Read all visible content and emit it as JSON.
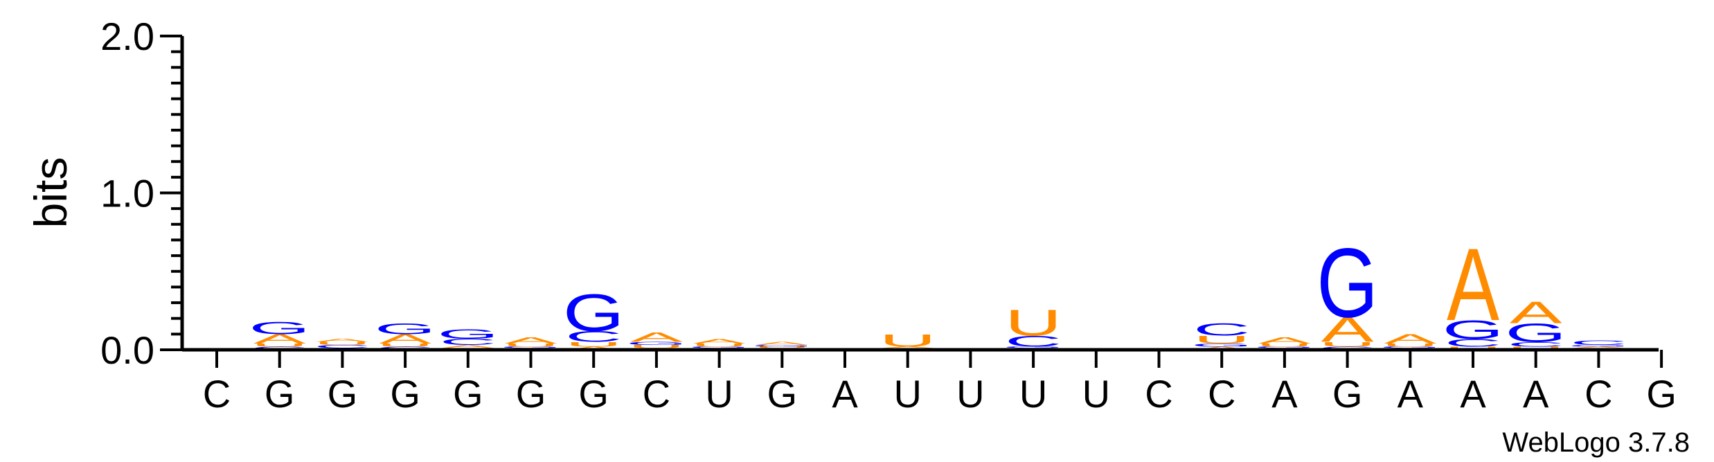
{
  "chart_data": {
    "type": "sequence-logo",
    "ylabel": "bits",
    "ylim": [
      0,
      2.0
    ],
    "yticks": [
      "0.0",
      "1.0",
      "2.0"
    ],
    "colors": {
      "A": "#ff8c00",
      "U": "#ff8c00",
      "G": "#0000ff",
      "C": "#0000ff"
    },
    "consensus": [
      "C",
      "G",
      "G",
      "G",
      "G",
      "G",
      "G",
      "C",
      "U",
      "G",
      "A",
      "U",
      "U",
      "U",
      "U",
      "C",
      "C",
      "A",
      "G",
      "A",
      "A",
      "A",
      "C",
      "G"
    ],
    "stacks": [
      [],
      [
        {
          "l": "C",
          "h": 0.02
        },
        {
          "l": "U",
          "h": 0.02
        },
        {
          "l": "A",
          "h": 0.06
        },
        {
          "l": "G",
          "h": 0.08
        }
      ],
      [
        {
          "l": "G",
          "h": 0.01
        },
        {
          "l": "C",
          "h": 0.02
        },
        {
          "l": "U",
          "h": 0.02
        },
        {
          "l": "A",
          "h": 0.02
        }
      ],
      [
        {
          "l": "C",
          "h": 0.02
        },
        {
          "l": "U",
          "h": 0.02
        },
        {
          "l": "A",
          "h": 0.06
        },
        {
          "l": "G",
          "h": 0.07
        }
      ],
      [
        {
          "l": "U",
          "h": 0.01
        },
        {
          "l": "A",
          "h": 0.02
        },
        {
          "l": "C",
          "h": 0.04
        },
        {
          "l": "G",
          "h": 0.06
        }
      ],
      [
        {
          "l": "C",
          "h": 0.01
        },
        {
          "l": "G",
          "h": 0.01
        },
        {
          "l": "U",
          "h": 0.02
        },
        {
          "l": "A",
          "h": 0.04
        }
      ],
      [
        {
          "l": "A",
          "h": 0.02
        },
        {
          "l": "U",
          "h": 0.03
        },
        {
          "l": "C",
          "h": 0.07
        },
        {
          "l": "G",
          "h": 0.24
        }
      ],
      [
        {
          "l": "C",
          "h": 0.01
        },
        {
          "l": "U",
          "h": 0.02
        },
        {
          "l": "G",
          "h": 0.02
        },
        {
          "l": "A",
          "h": 0.06
        }
      ],
      [
        {
          "l": "C",
          "h": 0.01
        },
        {
          "l": "G",
          "h": 0.01
        },
        {
          "l": "U",
          "h": 0.02
        },
        {
          "l": "A",
          "h": 0.03
        }
      ],
      [
        {
          "l": "C",
          "h": 0.01
        },
        {
          "l": "U",
          "h": 0.01
        },
        {
          "l": "G",
          "h": 0.01
        },
        {
          "l": "A",
          "h": 0.02
        }
      ],
      [],
      [
        {
          "l": "G",
          "h": 0.005
        },
        {
          "l": "C",
          "h": 0.005
        },
        {
          "l": "A",
          "h": 0.01
        },
        {
          "l": "U",
          "h": 0.08
        }
      ],
      [
        {
          "l": "G",
          "h": 0.004
        },
        {
          "l": "A",
          "h": 0.006
        }
      ],
      [
        {
          "l": "A",
          "h": 0.01
        },
        {
          "l": "G",
          "h": 0.01
        },
        {
          "l": "C",
          "h": 0.07
        },
        {
          "l": "U",
          "h": 0.17
        }
      ],
      [
        {
          "l": "U",
          "h": 0.004
        },
        {
          "l": "G",
          "h": 0.006
        }
      ],
      [],
      [
        {
          "l": "A",
          "h": 0.02
        },
        {
          "l": "G",
          "h": 0.02
        },
        {
          "l": "U",
          "h": 0.05
        },
        {
          "l": "C",
          "h": 0.08
        }
      ],
      [
        {
          "l": "C",
          "h": 0.01
        },
        {
          "l": "G",
          "h": 0.01
        },
        {
          "l": "U",
          "h": 0.02
        },
        {
          "l": "A",
          "h": 0.04
        }
      ],
      [
        {
          "l": "C",
          "h": 0.02
        },
        {
          "l": "U",
          "h": 0.03
        },
        {
          "l": "A",
          "h": 0.16
        },
        {
          "l": "G",
          "h": 0.45
        }
      ],
      [
        {
          "l": "C",
          "h": 0.01
        },
        {
          "l": "G",
          "h": 0.01
        },
        {
          "l": "U",
          "h": 0.02
        },
        {
          "l": "A",
          "h": 0.06
        }
      ],
      [
        {
          "l": "U",
          "h": 0.02
        },
        {
          "l": "C",
          "h": 0.05
        },
        {
          "l": "G",
          "h": 0.12
        },
        {
          "l": "A",
          "h": 0.47
        }
      ],
      [
        {
          "l": "U",
          "h": 0.02
        },
        {
          "l": "C",
          "h": 0.03
        },
        {
          "l": "G",
          "h": 0.12
        },
        {
          "l": "A",
          "h": 0.14
        }
      ],
      [
        {
          "l": "U",
          "h": 0.01
        },
        {
          "l": "A",
          "h": 0.01
        },
        {
          "l": "G",
          "h": 0.01
        },
        {
          "l": "C",
          "h": 0.03
        }
      ],
      []
    ],
    "credit": "WebLogo 3.7.8"
  }
}
